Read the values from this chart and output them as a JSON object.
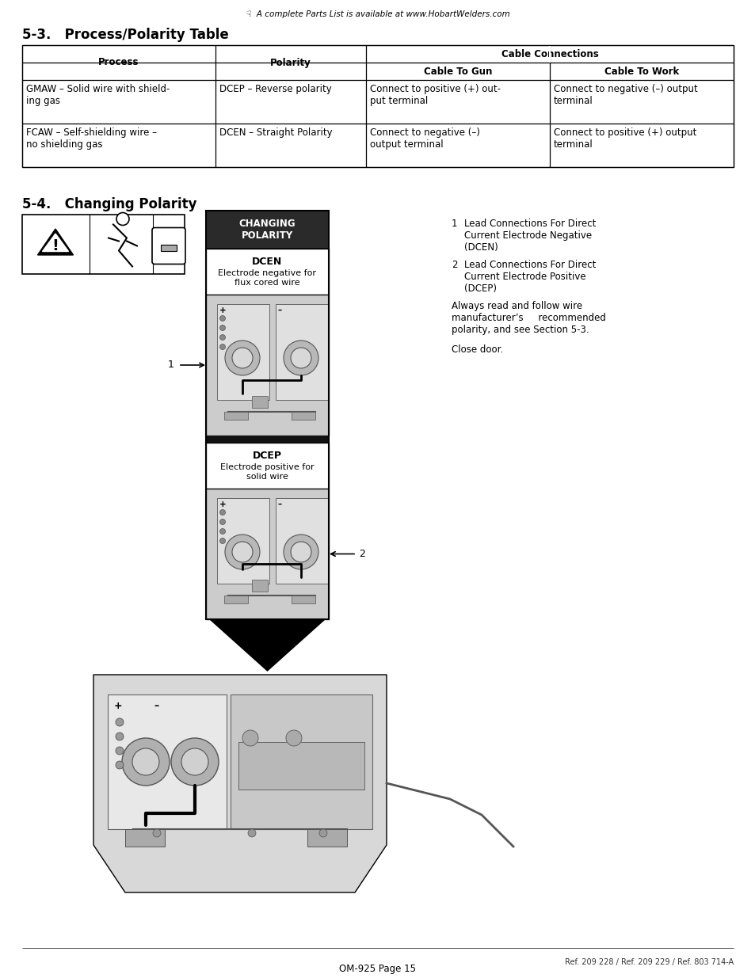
{
  "page_header": "☟  A complete Parts List is available at www.HobartWelders.com",
  "section1_title": "5-3.   Process/Polarity Table",
  "section2_title": "5-4.   Changing Polarity",
  "table_col_headers": [
    "Process",
    "Polarity",
    "Cable Connections"
  ],
  "table_sub_headers": [
    "Cable To Gun",
    "Cable To Work"
  ],
  "table_row1_col0": "GMAW – Solid wire with shield-\ning gas",
  "table_row1_col1": "DCEP – Reverse polarity",
  "table_row1_col2": "Connect to positive (+) out-\nput terminal",
  "table_row1_col3": "Connect to negative (–) output\nterminal",
  "table_row2_col0": "FCAW – Self-shielding wire –\nno shielding gas",
  "table_row2_col1": "DCEN – Straight Polarity",
  "table_row2_col2": "Connect to negative (–)\noutput terminal",
  "table_row2_col3": "Connect to positive (+) output\nterminal",
  "changing_polarity_label": "CHANGING\nPOLARITY",
  "dcen_label": "DCEN",
  "dcen_sub": "Electrode negative for\nflux cored wire",
  "dcep_label": "DCEP",
  "dcep_sub": "Electrode positive for\nsolid wire",
  "note1_num": "1",
  "note1_text": "Lead Connections For Direct\nCurrent Electrode Negative\n(DCEN)",
  "note2_num": "2",
  "note2_text": "Lead Connections For Direct\nCurrent Electrode Positive\n(DCEP)",
  "note_body": "Always read and follow wire\nmanufacturer’s     recommended\npolarity, and see Section 5-3.",
  "close_door": "Close door.",
  "footer_refs": "Ref. 209 228 / Ref. 209 229 / Ref. 803 714-A",
  "footer_page": "OM-925 Page 15",
  "bg_color": "#ffffff"
}
